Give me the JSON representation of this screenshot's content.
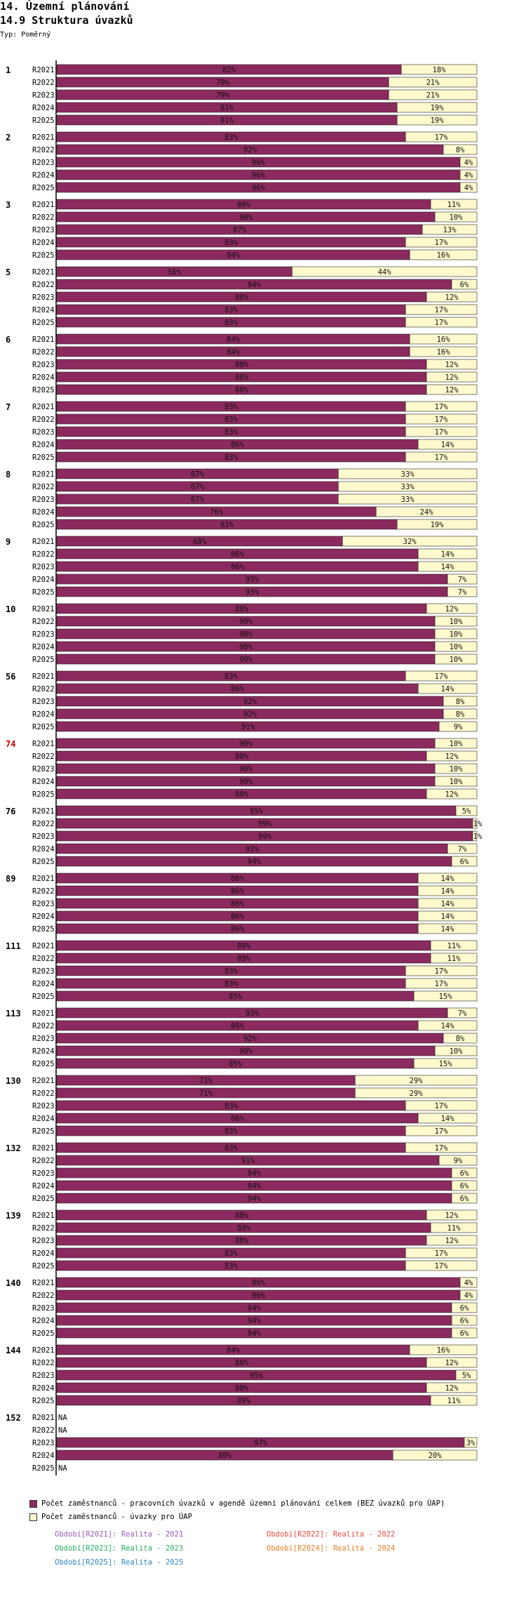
{
  "header": {
    "title": "14. Územní plánování",
    "subtitle": "14.9 Struktura úvazků",
    "type_label": "Typ: Poměrný"
  },
  "colors": {
    "series1": "#8b2a5e",
    "series2": "#fffacd",
    "highlight_group": "#cc0000",
    "axis": "#000000"
  },
  "legend": {
    "series1": "Počet zaměstnanců - pracovních úvazků v agendě územní plánování celkem (BEZ úvazků pro ÚAP)",
    "series2": "Počet zaměstnanců - úvazky pro ÚAP"
  },
  "periods": [
    {
      "label": "Období[R2021]: Realita - 2021",
      "color": "#9b59b6"
    },
    {
      "label": "Období[R2022]: Realita - 2022",
      "color": "#e74c3c"
    },
    {
      "label": "Období[R2023]: Realita - 2023",
      "color": "#27ae60"
    },
    {
      "label": "Období[R2024]: Realita - 2024",
      "color": "#e67e22"
    },
    {
      "label": "Období[R2025]: Realita - 2025",
      "color": "#2e86c1"
    }
  ],
  "chart_data": {
    "type": "bar",
    "orientation": "horizontal",
    "stacked": "percent",
    "title": "14.9 Struktura úvazků",
    "series_names": [
      "Počet zaměstnanců - pracovních úvazků v agendě územní plánování celkem (BEZ úvazků pro ÚAP)",
      "Počet zaměstnanců - úvazky pro ÚAP"
    ],
    "na_label": "NA",
    "highlight_group": "74",
    "groups": [
      {
        "name": "1",
        "rows": [
          {
            "year": "R2021",
            "values": [
              82,
              18
            ]
          },
          {
            "year": "R2022",
            "values": [
              79,
              21
            ]
          },
          {
            "year": "R2023",
            "values": [
              79,
              21
            ]
          },
          {
            "year": "R2024",
            "values": [
              81,
              19
            ]
          },
          {
            "year": "R2025",
            "values": [
              81,
              19
            ]
          }
        ]
      },
      {
        "name": "2",
        "rows": [
          {
            "year": "R2021",
            "values": [
              83,
              17
            ]
          },
          {
            "year": "R2022",
            "values": [
              92,
              8
            ]
          },
          {
            "year": "R2023",
            "values": [
              96,
              4
            ]
          },
          {
            "year": "R2024",
            "values": [
              96,
              4
            ]
          },
          {
            "year": "R2025",
            "values": [
              96,
              4
            ]
          }
        ]
      },
      {
        "name": "3",
        "rows": [
          {
            "year": "R2021",
            "values": [
              89,
              11
            ]
          },
          {
            "year": "R2022",
            "values": [
              90,
              10
            ]
          },
          {
            "year": "R2023",
            "values": [
              87,
              13
            ]
          },
          {
            "year": "R2024",
            "values": [
              83,
              17
            ]
          },
          {
            "year": "R2025",
            "values": [
              84,
              16
            ]
          }
        ]
      },
      {
        "name": "5",
        "rows": [
          {
            "year": "R2021",
            "values": [
              56,
              44
            ]
          },
          {
            "year": "R2022",
            "values": [
              94,
              6
            ]
          },
          {
            "year": "R2023",
            "values": [
              88,
              12
            ]
          },
          {
            "year": "R2024",
            "values": [
              83,
              17
            ]
          },
          {
            "year": "R2025",
            "values": [
              83,
              17
            ]
          }
        ]
      },
      {
        "name": "6",
        "rows": [
          {
            "year": "R2021",
            "values": [
              84,
              16
            ]
          },
          {
            "year": "R2022",
            "values": [
              84,
              16
            ]
          },
          {
            "year": "R2023",
            "values": [
              88,
              12
            ]
          },
          {
            "year": "R2024",
            "values": [
              88,
              12
            ]
          },
          {
            "year": "R2025",
            "values": [
              88,
              12
            ]
          }
        ]
      },
      {
        "name": "7",
        "rows": [
          {
            "year": "R2021",
            "values": [
              83,
              17
            ]
          },
          {
            "year": "R2022",
            "values": [
              83,
              17
            ]
          },
          {
            "year": "R2023",
            "values": [
              83,
              17
            ]
          },
          {
            "year": "R2024",
            "values": [
              86,
              14
            ]
          },
          {
            "year": "R2025",
            "values": [
              83,
              17
            ]
          }
        ]
      },
      {
        "name": "8",
        "rows": [
          {
            "year": "R2021",
            "values": [
              67,
              33
            ]
          },
          {
            "year": "R2022",
            "values": [
              67,
              33
            ]
          },
          {
            "year": "R2023",
            "values": [
              67,
              33
            ]
          },
          {
            "year": "R2024",
            "values": [
              76,
              24
            ]
          },
          {
            "year": "R2025",
            "values": [
              81,
              19
            ]
          }
        ]
      },
      {
        "name": "9",
        "rows": [
          {
            "year": "R2021",
            "values": [
              68,
              32
            ]
          },
          {
            "year": "R2022",
            "values": [
              86,
              14
            ]
          },
          {
            "year": "R2023",
            "values": [
              86,
              14
            ]
          },
          {
            "year": "R2024",
            "values": [
              93,
              7
            ]
          },
          {
            "year": "R2025",
            "values": [
              93,
              7
            ]
          }
        ]
      },
      {
        "name": "10",
        "rows": [
          {
            "year": "R2021",
            "values": [
              88,
              12
            ]
          },
          {
            "year": "R2022",
            "values": [
              90,
              10
            ]
          },
          {
            "year": "R2023",
            "values": [
              90,
              10
            ]
          },
          {
            "year": "R2024",
            "values": [
              90,
              10
            ]
          },
          {
            "year": "R2025",
            "values": [
              90,
              10
            ]
          }
        ]
      },
      {
        "name": "56",
        "rows": [
          {
            "year": "R2021",
            "values": [
              83,
              17
            ]
          },
          {
            "year": "R2022",
            "values": [
              86,
              14
            ]
          },
          {
            "year": "R2023",
            "values": [
              92,
              8
            ]
          },
          {
            "year": "R2024",
            "values": [
              92,
              8
            ]
          },
          {
            "year": "R2025",
            "values": [
              91,
              9
            ]
          }
        ]
      },
      {
        "name": "74",
        "rows": [
          {
            "year": "R2021",
            "values": [
              90,
              10
            ]
          },
          {
            "year": "R2022",
            "values": [
              88,
              12
            ]
          },
          {
            "year": "R2023",
            "values": [
              90,
              10
            ]
          },
          {
            "year": "R2024",
            "values": [
              90,
              10
            ]
          },
          {
            "year": "R2025",
            "values": [
              88,
              12
            ]
          }
        ]
      },
      {
        "name": "76",
        "rows": [
          {
            "year": "R2021",
            "values": [
              95,
              5
            ]
          },
          {
            "year": "R2022",
            "values": [
              99,
              1
            ]
          },
          {
            "year": "R2023",
            "values": [
              99,
              1
            ]
          },
          {
            "year": "R2024",
            "values": [
              93,
              7
            ]
          },
          {
            "year": "R2025",
            "values": [
              94,
              6
            ]
          }
        ]
      },
      {
        "name": "89",
        "rows": [
          {
            "year": "R2021",
            "values": [
              86,
              14
            ]
          },
          {
            "year": "R2022",
            "values": [
              86,
              14
            ]
          },
          {
            "year": "R2023",
            "values": [
              86,
              14
            ]
          },
          {
            "year": "R2024",
            "values": [
              86,
              14
            ]
          },
          {
            "year": "R2025",
            "values": [
              86,
              14
            ]
          }
        ]
      },
      {
        "name": "111",
        "rows": [
          {
            "year": "R2021",
            "values": [
              89,
              11
            ]
          },
          {
            "year": "R2022",
            "values": [
              89,
              11
            ]
          },
          {
            "year": "R2023",
            "values": [
              83,
              17
            ]
          },
          {
            "year": "R2024",
            "values": [
              83,
              17
            ]
          },
          {
            "year": "R2025",
            "values": [
              85,
              15
            ]
          }
        ]
      },
      {
        "name": "113",
        "rows": [
          {
            "year": "R2021",
            "values": [
              93,
              7
            ]
          },
          {
            "year": "R2022",
            "values": [
              86,
              14
            ]
          },
          {
            "year": "R2023",
            "values": [
              92,
              8
            ]
          },
          {
            "year": "R2024",
            "values": [
              90,
              10
            ]
          },
          {
            "year": "R2025",
            "values": [
              85,
              15
            ]
          }
        ]
      },
      {
        "name": "130",
        "rows": [
          {
            "year": "R2021",
            "values": [
              71,
              29
            ]
          },
          {
            "year": "R2022",
            "values": [
              71,
              29
            ]
          },
          {
            "year": "R2023",
            "values": [
              83,
              17
            ]
          },
          {
            "year": "R2024",
            "values": [
              86,
              14
            ]
          },
          {
            "year": "R2025",
            "values": [
              83,
              17
            ]
          }
        ]
      },
      {
        "name": "132",
        "rows": [
          {
            "year": "R2021",
            "values": [
              83,
              17
            ]
          },
          {
            "year": "R2022",
            "values": [
              91,
              9
            ]
          },
          {
            "year": "R2023",
            "values": [
              94,
              6
            ]
          },
          {
            "year": "R2024",
            "values": [
              94,
              6
            ]
          },
          {
            "year": "R2025",
            "values": [
              94,
              6
            ]
          }
        ]
      },
      {
        "name": "139",
        "rows": [
          {
            "year": "R2021",
            "values": [
              88,
              12
            ]
          },
          {
            "year": "R2022",
            "values": [
              89,
              11
            ]
          },
          {
            "year": "R2023",
            "values": [
              88,
              12
            ]
          },
          {
            "year": "R2024",
            "values": [
              83,
              17
            ]
          },
          {
            "year": "R2025",
            "values": [
              83,
              17
            ]
          }
        ]
      },
      {
        "name": "140",
        "rows": [
          {
            "year": "R2021",
            "values": [
              96,
              4
            ]
          },
          {
            "year": "R2022",
            "values": [
              96,
              4
            ]
          },
          {
            "year": "R2023",
            "values": [
              94,
              6
            ]
          },
          {
            "year": "R2024",
            "values": [
              94,
              6
            ]
          },
          {
            "year": "R2025",
            "values": [
              94,
              6
            ]
          }
        ]
      },
      {
        "name": "144",
        "rows": [
          {
            "year": "R2021",
            "values": [
              84,
              16
            ]
          },
          {
            "year": "R2022",
            "values": [
              88,
              12
            ]
          },
          {
            "year": "R2023",
            "values": [
              95,
              5
            ]
          },
          {
            "year": "R2024",
            "values": [
              88,
              12
            ]
          },
          {
            "year": "R2025",
            "values": [
              89,
              11
            ]
          }
        ]
      },
      {
        "name": "152",
        "rows": [
          {
            "year": "R2021",
            "values": null
          },
          {
            "year": "R2022",
            "values": null
          },
          {
            "year": "R2023",
            "values": [
              97,
              3
            ]
          },
          {
            "year": "R2024",
            "values": [
              80,
              20
            ]
          },
          {
            "year": "R2025",
            "values": null
          }
        ]
      }
    ]
  }
}
